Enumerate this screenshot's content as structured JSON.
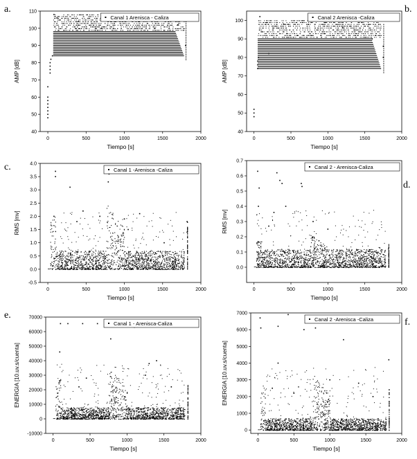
{
  "panel_letters": [
    "a.",
    "b.",
    "c.",
    "d.",
    "e.",
    "f."
  ],
  "chart_data": [
    {
      "id": "a",
      "type": "scatter",
      "legend": "Canal 1  Arenisca - Caliza",
      "legend_position": "top-right",
      "xlabel": "Tiempo [s]",
      "ylabel": "AMP [dB]",
      "xlim": [
        -100,
        2000
      ],
      "ylim": [
        40,
        110
      ],
      "xticks": [
        0,
        500,
        1000,
        1500,
        2000
      ],
      "yticks": [
        40,
        50,
        60,
        70,
        80,
        90,
        100,
        110
      ],
      "pattern": "quantized",
      "points": [
        [
          0,
          48
        ],
        [
          0,
          50
        ],
        [
          0,
          52
        ],
        [
          0,
          54
        ],
        [
          0,
          56
        ],
        [
          0,
          58
        ],
        [
          0,
          60
        ],
        [
          0,
          66
        ],
        [
          30,
          74
        ],
        [
          30,
          76
        ],
        [
          30,
          78
        ],
        [
          30,
          80
        ],
        [
          40,
          82
        ],
        [
          60,
          84
        ],
        [
          80,
          108
        ],
        [
          120,
          106
        ],
        [
          400,
          104
        ],
        [
          700,
          100
        ],
        [
          1100,
          104
        ],
        [
          1400,
          100
        ],
        [
          1700,
          102
        ],
        [
          1800,
          106
        ],
        [
          1800,
          90
        ]
      ]
    },
    {
      "id": "b",
      "type": "scatter",
      "legend": "Canal 2 Arenisca -Caliza",
      "legend_position": "top-right",
      "xlabel": "Tiempo [s]",
      "ylabel": "AMP [dB]",
      "xlim": [
        -100,
        2000
      ],
      "ylim": [
        40,
        105
      ],
      "xticks": [
        0,
        500,
        1000,
        1500,
        2000
      ],
      "yticks": [
        40,
        50,
        60,
        70,
        80,
        90,
        100
      ],
      "pattern": "quantized",
      "points": [
        [
          0,
          48
        ],
        [
          0,
          50
        ],
        [
          0,
          52
        ],
        [
          50,
          74
        ],
        [
          50,
          76
        ],
        [
          50,
          78
        ],
        [
          60,
          80
        ],
        [
          80,
          102
        ],
        [
          200,
          82
        ],
        [
          400,
          98
        ],
        [
          800,
          100
        ],
        [
          1200,
          96
        ],
        [
          1600,
          90
        ],
        [
          1750,
          86
        ],
        [
          1750,
          80
        ]
      ]
    },
    {
      "id": "c",
      "type": "scatter",
      "legend": "Canal 1 -Arenisca -Caliza",
      "legend_position": "top-right",
      "xlabel": "Tiempo [s]",
      "ylabel": "RMS [mv]",
      "xlim": [
        -100,
        2000
      ],
      "ylim": [
        -0.5,
        4.0
      ],
      "xticks": [
        0,
        500,
        1000,
        1500,
        2000
      ],
      "yticks": [
        -0.5,
        0.0,
        0.5,
        1.0,
        1.5,
        2.0,
        2.5,
        3.0,
        3.5,
        4.0
      ],
      "pattern": "burst",
      "points": [
        [
          100,
          3.7
        ],
        [
          100,
          3.5
        ],
        [
          290,
          3.1
        ],
        [
          460,
          2.2
        ],
        [
          380,
          1.8
        ],
        [
          800,
          3.6
        ],
        [
          790,
          3.3
        ],
        [
          1200,
          2.1
        ],
        [
          1820,
          1.8
        ],
        [
          1820,
          1.4
        ],
        [
          80,
          2.0
        ],
        [
          680,
          2.0
        ],
        [
          1000,
          1.9
        ],
        [
          1520,
          1.0
        ],
        [
          1050,
          1.5
        ]
      ]
    },
    {
      "id": "d",
      "type": "scatter",
      "legend": "Canal 2 - Arenisca-Caliza",
      "legend_position": "top-right",
      "xlabel": "Tiempo [s]",
      "ylabel": "RMS [mv]",
      "xlim": [
        -100,
        2000
      ],
      "ylim": [
        -0.1,
        0.7
      ],
      "xticks": [
        0,
        500,
        1000,
        1500,
        2000
      ],
      "yticks": [
        0.0,
        0.1,
        0.2,
        0.3,
        0.4,
        0.5,
        0.6,
        0.7
      ],
      "pattern": "burst",
      "points": [
        [
          50,
          0.63
        ],
        [
          70,
          0.52
        ],
        [
          310,
          0.62
        ],
        [
          350,
          0.57
        ],
        [
          380,
          0.55
        ],
        [
          640,
          0.55
        ],
        [
          650,
          0.53
        ],
        [
          800,
          0.3
        ],
        [
          1000,
          0.25
        ],
        [
          430,
          0.4
        ],
        [
          60,
          0.4
        ],
        [
          1820,
          0.12
        ],
        [
          270,
          0.36
        ],
        [
          200,
          0.27
        ]
      ]
    },
    {
      "id": "e",
      "type": "scatter",
      "legend": "Canal 1 - Arenisca-Caliza",
      "legend_position": "top-right",
      "xlabel": "Tiempo [s]",
      "ylabel": "ENERGIA [10.uv.s/cuenta]",
      "xlim": [
        -100,
        2000
      ],
      "ylim": [
        -10000,
        70000
      ],
      "xticks": [
        0,
        500,
        1000,
        1500,
        2000
      ],
      "yticks": [
        -10000,
        0,
        10000,
        20000,
        30000,
        40000,
        50000,
        60000,
        70000
      ],
      "pattern": "burst",
      "points": [
        [
          100,
          65500
        ],
        [
          200,
          65500
        ],
        [
          400,
          65500
        ],
        [
          600,
          65500
        ],
        [
          700,
          65500
        ],
        [
          800,
          65500
        ],
        [
          1000,
          65500
        ],
        [
          1500,
          65500
        ],
        [
          1800,
          65500
        ],
        [
          90,
          46000
        ],
        [
          780,
          55000
        ],
        [
          1400,
          40000
        ],
        [
          1100,
          63000
        ],
        [
          1300,
          38000
        ],
        [
          450,
          28000
        ],
        [
          350,
          22000
        ],
        [
          1250,
          30000
        ],
        [
          1600,
          22000
        ]
      ]
    },
    {
      "id": "f",
      "type": "scatter",
      "legend": "Canal 2 -Arenisca -Caliza",
      "legend_position": "top-right",
      "xlabel": "Tiempo [s]",
      "ylabel": "ENERGIA [10.uv.s/cuenta]",
      "xlim": [
        -100,
        2000
      ],
      "ylim": [
        -200,
        7000
      ],
      "xticks": [
        0,
        500,
        1000,
        1500,
        2000
      ],
      "yticks": [
        0,
        1000,
        2000,
        3000,
        4000,
        5000,
        6000,
        7000
      ],
      "pattern": "burst",
      "points": [
        [
          30,
          6700
        ],
        [
          40,
          6100
        ],
        [
          280,
          6200
        ],
        [
          420,
          6900
        ],
        [
          780,
          6800
        ],
        [
          800,
          6100
        ],
        [
          640,
          6000
        ],
        [
          1190,
          5400
        ],
        [
          1820,
          4200
        ],
        [
          280,
          4000
        ],
        [
          1000,
          3000
        ],
        [
          1400,
          2800
        ],
        [
          1600,
          2000
        ],
        [
          200,
          2500
        ],
        [
          500,
          2200
        ]
      ]
    }
  ]
}
